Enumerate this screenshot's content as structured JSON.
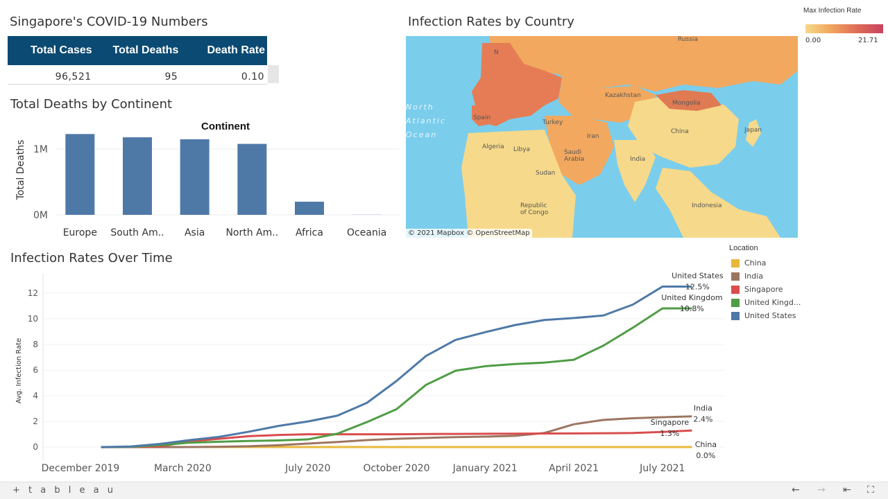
{
  "kpi": {
    "title": "Singapore's COVID-19 Numbers",
    "headers": [
      "Total Cases",
      "Total Deaths",
      "Death Rate"
    ],
    "values": [
      "96,521",
      "95",
      "0.10"
    ]
  },
  "map": {
    "title": "Infection Rates by Country",
    "credit": "© 2021 Mapbox  © OpenStreetMap",
    "country_labels": [
      "Russia",
      "Kazakhstan",
      "Mongolia",
      "China",
      "Japan",
      "Turkey",
      "Iran",
      "Saudi Arabia",
      "India",
      "Algeria",
      "Libya",
      "Sudan",
      "Republic of Congo",
      "Spain",
      "Indonesia",
      "N"
    ],
    "ocean_labels": [
      "North",
      "Atlantic",
      "Ocean"
    ],
    "legend": {
      "title": "Max Infection Rate",
      "min": "0.00",
      "max": "21.71"
    }
  },
  "location_legend": {
    "title": "Location",
    "items": [
      {
        "label": "China",
        "color": "#e8b83a"
      },
      {
        "label": "India",
        "color": "#9c7561"
      },
      {
        "label": "Singapore",
        "color": "#d94d4d"
      },
      {
        "label": "United Kingd...",
        "color": "#4f9d45"
      },
      {
        "label": "United States",
        "color": "#4e79a7"
      }
    ]
  },
  "footer": {
    "logo": "+ t a b l e a u"
  },
  "chart_data": [
    {
      "type": "bar",
      "title": "Total Deaths by Continent",
      "subtitle": "Continent",
      "ylabel": "Total Deaths",
      "xlabel": "",
      "categories": [
        "Europe",
        "South Am..",
        "Asia",
        "North Am..",
        "Africa",
        "Oceania"
      ],
      "values": [
        1230000,
        1180000,
        1150000,
        1080000,
        200000,
        2000
      ],
      "ylim": [
        0,
        1350000
      ],
      "yticks": [
        0,
        1000000
      ],
      "ytick_labels": [
        "0M",
        "1M"
      ],
      "color": "#4e79a7"
    },
    {
      "type": "line",
      "title": "Infection Rates Over Time",
      "ylabel": "Avg. Infection Rate",
      "xlabel": "",
      "ylim": [
        -0.8,
        13.5
      ],
      "yticks": [
        0,
        2,
        4,
        6,
        8,
        10,
        12
      ],
      "xticks": [
        "December 2019",
        "March 2020",
        "July 2020",
        "October 2020",
        "January 2021",
        "April 2021",
        "July 2021"
      ],
      "x": [
        "2020-01",
        "2020-02",
        "2020-03",
        "2020-04",
        "2020-05",
        "2020-06",
        "2020-07",
        "2020-08",
        "2020-09",
        "2020-10",
        "2020-11",
        "2020-12",
        "2021-01",
        "2021-02",
        "2021-03",
        "2021-04",
        "2021-05",
        "2021-06",
        "2021-07",
        "2021-08",
        "2021-09"
      ],
      "series": [
        {
          "name": "China",
          "color": "#e8b83a",
          "values": [
            0.01,
            0.01,
            0.01,
            0.01,
            0.01,
            0.01,
            0.01,
            0.01,
            0.01,
            0.01,
            0.01,
            0.01,
            0.01,
            0.01,
            0.01,
            0.01,
            0.01,
            0.01,
            0.01,
            0.01,
            0.01
          ],
          "label": "China",
          "value_label": "0.0%"
        },
        {
          "name": "India",
          "color": "#9c7561",
          "values": [
            0,
            0,
            0,
            0.01,
            0.03,
            0.07,
            0.15,
            0.28,
            0.4,
            0.55,
            0.65,
            0.72,
            0.78,
            0.82,
            0.88,
            1.1,
            1.78,
            2.12,
            2.25,
            2.33,
            2.4
          ],
          "label": "India",
          "value_label": "2.4%"
        },
        {
          "name": "Singapore",
          "color": "#d94d4d",
          "values": [
            0,
            0.01,
            0.05,
            0.45,
            0.65,
            0.85,
            0.95,
            1.0,
            1.0,
            1.0,
            1.0,
            1.02,
            1.03,
            1.04,
            1.05,
            1.06,
            1.07,
            1.08,
            1.1,
            1.18,
            1.3
          ],
          "label": "Singapore",
          "value_label": "1.3%"
        },
        {
          "name": "United Kingd...",
          "color": "#4f9d45",
          "values": [
            0,
            0.02,
            0.15,
            0.35,
            0.42,
            0.48,
            0.52,
            0.6,
            1.05,
            1.95,
            2.95,
            4.85,
            5.95,
            6.3,
            6.47,
            6.58,
            6.8,
            7.9,
            9.3,
            10.8,
            10.8
          ],
          "label": "United Kingdom",
          "value_label": "10.8%"
        },
        {
          "name": "United States",
          "color": "#4e79a7",
          "values": [
            0,
            0.05,
            0.25,
            0.55,
            0.8,
            1.2,
            1.65,
            2.0,
            2.45,
            3.45,
            5.15,
            7.1,
            8.35,
            8.95,
            9.5,
            9.9,
            10.05,
            10.25,
            11.1,
            12.5,
            12.5
          ],
          "label": "United States",
          "value_label": "12.5%"
        }
      ]
    }
  ]
}
